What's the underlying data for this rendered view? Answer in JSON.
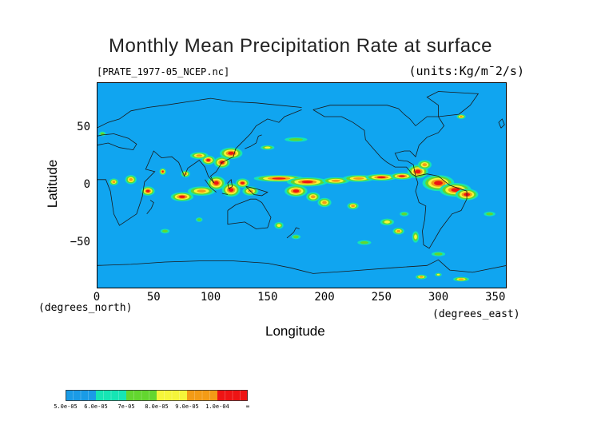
{
  "title": "Monthly Mean Precipitation Rate at surface",
  "file_label": "[PRATE_1977-05_NCEP.nc]",
  "units_label": "(units:Kg/m¯2/s)",
  "chart_data": {
    "type": "heatmap",
    "title": "Monthly Mean Precipitation Rate at surface",
    "xlabel": "Longitude",
    "ylabel": "Latitude",
    "x_unit": "(degrees_east)",
    "y_unit": "(degrees_north)",
    "xlim": [
      0,
      360
    ],
    "ylim": [
      -90,
      90
    ],
    "x_ticks": [
      0,
      50,
      100,
      150,
      200,
      250,
      300,
      350
    ],
    "y_ticks": [
      50,
      0,
      -50
    ],
    "grid": false,
    "colorbar": {
      "labels": [
        "5.0e-05",
        "6.0e-05",
        "7e-05",
        "8.0e-05",
        "9.0e-05",
        "1.0e-04",
        "∞"
      ],
      "colors": [
        "#1a9be6",
        "#16e5b4",
        "#63d62f",
        "#f5f53a",
        "#f39b16",
        "#ee1414"
      ]
    }
  },
  "colors": {
    "base": "#10a5f0",
    "teal": "#16e5b4",
    "green": "#63d62f",
    "yellow": "#f5f53a",
    "orange": "#f39b16",
    "red": "#ee1414",
    "coast": "#1a1a1a"
  }
}
